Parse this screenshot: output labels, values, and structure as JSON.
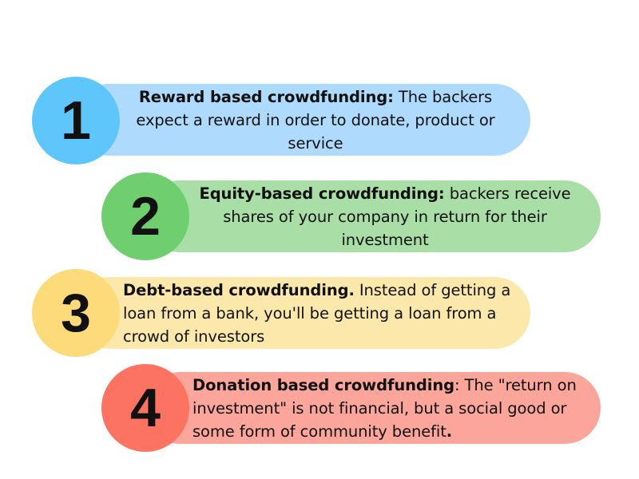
{
  "items": [
    {
      "number": "1",
      "lead": "Reward based crowdfunding:",
      "text": " The backers expect a reward in order to donate, product or service",
      "trail": "",
      "circle_color": "#5ec6fb",
      "pill_color": "#aedbfd"
    },
    {
      "number": "2",
      "lead": "Equity-based crowdfunding:",
      "text": " backers receive shares of your company in return for their investment",
      "trail": "",
      "circle_color": "#6fcf6f",
      "pill_color": "#a9dea6"
    },
    {
      "number": "3",
      "lead": "Debt-based crowdfunding.",
      "text": " Instead of getting a loan from a bank, you'll be getting a loan from a crowd of investors",
      "trail": "",
      "circle_color": "#fddb7a",
      "pill_color": "#fde8ac"
    },
    {
      "number": "4",
      "lead": "Donation based crowdfunding",
      "text": ": The \"return on investment\" is not financial, but a social good or some form of community benefit",
      "trail": ".",
      "circle_color": "#fc7362",
      "pill_color": "#fba59b"
    }
  ]
}
